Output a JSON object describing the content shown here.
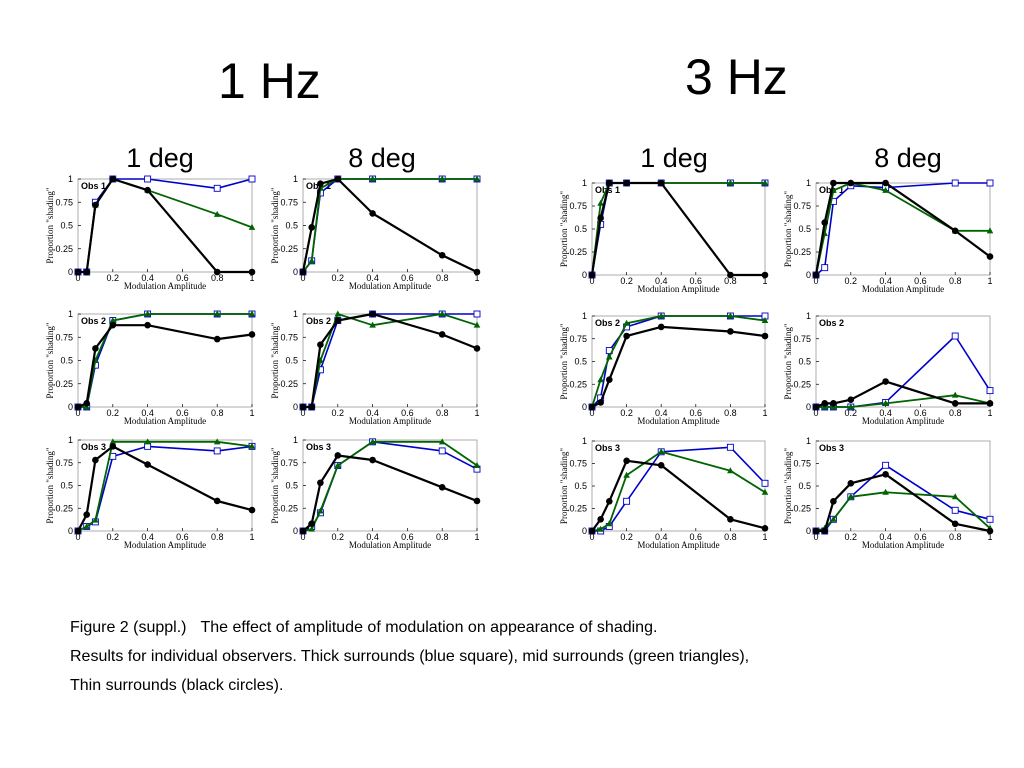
{
  "titles": {
    "freq_1hz": "1 Hz",
    "freq_3hz": "3 Hz",
    "col_1": "1 deg",
    "col_2": "8 deg",
    "col_3": "1 deg",
    "col_4": "8 deg"
  },
  "caption": {
    "label": "Figure 2 (suppl.)",
    "line1": "The effect of amplitude of modulation on appearance of shading.",
    "line2": "Results for individual observers. Thick surrounds (blue square), mid surrounds (green triangles),",
    "line3": "Thin surrounds (black circles)."
  },
  "colors": {
    "blue": "#0000cc",
    "green": "#006400",
    "black": "#000000",
    "frame": "#999999"
  },
  "chart_data": [
    {
      "id": "1hz-1deg-obs1",
      "type": "line",
      "title": "Obs 1",
      "xlabel": "Modulation Amplitude",
      "ylabel": "Proportion \"shading\"",
      "xlim": [
        0,
        1
      ],
      "ylim": [
        0,
        1
      ],
      "x": [
        0,
        0.05,
        0.1,
        0.2,
        0.4,
        0.8,
        1
      ],
      "series": [
        {
          "marker": "square",
          "color": "#0000cc",
          "values": [
            0,
            0,
            0.75,
            1,
            1,
            0.9,
            1
          ]
        },
        {
          "marker": "triangle",
          "color": "#006400",
          "values": [
            0,
            0,
            0.72,
            1,
            0.88,
            0.62,
            0.48
          ]
        },
        {
          "marker": "circle",
          "color": "#000000",
          "values": [
            0,
            0,
            0.72,
            1,
            0.88,
            0,
            0
          ]
        }
      ]
    },
    {
      "id": "1hz-8deg-obs1",
      "type": "line",
      "title": "Obs 1",
      "xlabel": "Modulation Amplitude",
      "ylabel": "Proportion \"shading\"",
      "xlim": [
        0,
        1
      ],
      "ylim": [
        0,
        1
      ],
      "x": [
        0,
        0.05,
        0.1,
        0.2,
        0.4,
        0.8,
        1
      ],
      "series": [
        {
          "marker": "square",
          "color": "#0000cc",
          "values": [
            0,
            0.12,
            0.85,
            1,
            1,
            1,
            1
          ]
        },
        {
          "marker": "triangle",
          "color": "#006400",
          "values": [
            0,
            0.12,
            0.9,
            1,
            1,
            1,
            1
          ]
        },
        {
          "marker": "circle",
          "color": "#000000",
          "values": [
            0,
            0.48,
            0.95,
            1,
            0.63,
            0.18,
            0
          ]
        }
      ]
    },
    {
      "id": "3hz-1deg-obs1",
      "type": "line",
      "title": "Obs 1",
      "xlabel": "Modulation Amplitude",
      "ylabel": "Proportion \"shading\"",
      "xlim": [
        0,
        1
      ],
      "ylim": [
        0,
        1
      ],
      "x": [
        0,
        0.05,
        0.1,
        0.2,
        0.4,
        0.8,
        1
      ],
      "series": [
        {
          "marker": "square",
          "color": "#0000cc",
          "values": [
            0,
            0.55,
            1,
            1,
            1,
            1,
            1
          ]
        },
        {
          "marker": "triangle",
          "color": "#006400",
          "values": [
            0,
            0.78,
            1,
            1,
            1,
            1,
            1
          ]
        },
        {
          "marker": "circle",
          "color": "#000000",
          "values": [
            0,
            0.62,
            1,
            1,
            1,
            0,
            0
          ]
        }
      ]
    },
    {
      "id": "3hz-8deg-obs1",
      "type": "line",
      "title": "Obs 1",
      "xlabel": "Modulation Amplitude",
      "ylabel": "Proportion \"shading\"",
      "xlim": [
        0,
        1
      ],
      "ylim": [
        0,
        1
      ],
      "x": [
        0,
        0.05,
        0.1,
        0.2,
        0.4,
        0.8,
        1
      ],
      "series": [
        {
          "marker": "square",
          "color": "#0000cc",
          "values": [
            0,
            0.08,
            0.8,
            0.97,
            0.95,
            1,
            1
          ]
        },
        {
          "marker": "triangle",
          "color": "#006400",
          "values": [
            0,
            0.45,
            0.92,
            1,
            0.92,
            0.48,
            0.48
          ]
        },
        {
          "marker": "circle",
          "color": "#000000",
          "values": [
            0,
            0.57,
            1,
            1,
            1,
            0.48,
            0.2
          ]
        }
      ]
    },
    {
      "id": "1hz-1deg-obs2",
      "type": "line",
      "title": "Obs 2",
      "xlabel": "Modulation Amplitude",
      "ylabel": "Proportion \"shading\"",
      "xlim": [
        0,
        1
      ],
      "ylim": [
        0,
        1
      ],
      "x": [
        0,
        0.05,
        0.1,
        0.2,
        0.4,
        0.8,
        1
      ],
      "series": [
        {
          "marker": "square",
          "color": "#0000cc",
          "values": [
            0,
            0,
            0.45,
            0.93,
            1,
            1,
            1
          ]
        },
        {
          "marker": "triangle",
          "color": "#006400",
          "values": [
            0,
            0,
            0.5,
            0.93,
            1,
            1,
            1
          ]
        },
        {
          "marker": "circle",
          "color": "#000000",
          "values": [
            0,
            0.04,
            0.63,
            0.88,
            0.88,
            0.73,
            0.78
          ]
        }
      ]
    },
    {
      "id": "1hz-8deg-obs2",
      "type": "line",
      "title": "Obs 2",
      "xlabel": "Modulation Amplitude",
      "ylabel": "Proportion \"shading\"",
      "xlim": [
        0,
        1
      ],
      "ylim": [
        0,
        1
      ],
      "x": [
        0,
        0.05,
        0.1,
        0.2,
        0.4,
        0.8,
        1
      ],
      "series": [
        {
          "marker": "square",
          "color": "#0000cc",
          "values": [
            0,
            0,
            0.4,
            0.93,
            1,
            1,
            1
          ]
        },
        {
          "marker": "triangle",
          "color": "#006400",
          "values": [
            0,
            0,
            0.5,
            1,
            0.88,
            1,
            0.88
          ]
        },
        {
          "marker": "circle",
          "color": "#000000",
          "values": [
            0,
            0,
            0.67,
            0.93,
            1,
            0.78,
            0.63
          ]
        }
      ]
    },
    {
      "id": "3hz-1deg-obs2",
      "type": "line",
      "title": "Obs 2",
      "xlabel": "Modulation Amplitude",
      "ylabel": "Proportion \"shading\"",
      "xlim": [
        0,
        1
      ],
      "ylim": [
        0,
        1
      ],
      "x": [
        0,
        0.05,
        0.1,
        0.2,
        0.4,
        0.8,
        1
      ],
      "series": [
        {
          "marker": "square",
          "color": "#0000cc",
          "values": [
            0,
            0.1,
            0.62,
            0.88,
            1,
            1,
            1
          ]
        },
        {
          "marker": "triangle",
          "color": "#006400",
          "values": [
            0,
            0.3,
            0.55,
            0.92,
            1,
            1,
            0.95
          ]
        },
        {
          "marker": "circle",
          "color": "#000000",
          "values": [
            0,
            0.05,
            0.3,
            0.78,
            0.88,
            0.83,
            0.78
          ]
        }
      ]
    },
    {
      "id": "3hz-8deg-obs2",
      "type": "line",
      "title": "Obs 2",
      "xlabel": "Modulation Amplitude",
      "ylabel": "Proportion \"shading\"",
      "xlim": [
        0,
        1
      ],
      "ylim": [
        0,
        1
      ],
      "x": [
        0,
        0.05,
        0.1,
        0.2,
        0.4,
        0.8,
        1
      ],
      "series": [
        {
          "marker": "square",
          "color": "#0000cc",
          "values": [
            0,
            0,
            0,
            0,
            0.05,
            0.78,
            0.18
          ]
        },
        {
          "marker": "triangle",
          "color": "#006400",
          "values": [
            0,
            0,
            0,
            0,
            0.04,
            0.13,
            0.04
          ]
        },
        {
          "marker": "circle",
          "color": "#000000",
          "values": [
            0,
            0.04,
            0.04,
            0.08,
            0.28,
            0.04,
            0.04
          ]
        }
      ]
    },
    {
      "id": "1hz-1deg-obs3",
      "type": "line",
      "title": "Obs 3",
      "xlabel": "Modulation Amplitude",
      "ylabel": "Proportion \"shading\"",
      "xlim": [
        0,
        1
      ],
      "ylim": [
        0,
        1
      ],
      "x": [
        0,
        0.05,
        0.1,
        0.2,
        0.4,
        0.8,
        1
      ],
      "series": [
        {
          "marker": "square",
          "color": "#0000cc",
          "values": [
            0,
            0.05,
            0.1,
            0.82,
            0.93,
            0.88,
            0.93
          ]
        },
        {
          "marker": "triangle",
          "color": "#006400",
          "values": [
            0,
            0.05,
            0.12,
            0.98,
            0.98,
            0.98,
            0.93
          ]
        },
        {
          "marker": "circle",
          "color": "#000000",
          "values": [
            0,
            0.18,
            0.78,
            0.93,
            0.73,
            0.33,
            0.23
          ]
        }
      ]
    },
    {
      "id": "1hz-8deg-obs3",
      "type": "line",
      "title": "Obs 3",
      "xlabel": "Modulation Amplitude",
      "ylabel": "Proportion \"shading\"",
      "xlim": [
        0,
        1
      ],
      "ylim": [
        0,
        1
      ],
      "x": [
        0,
        0.05,
        0.1,
        0.2,
        0.4,
        0.8,
        1
      ],
      "series": [
        {
          "marker": "square",
          "color": "#0000cc",
          "values": [
            0,
            0.05,
            0.2,
            0.72,
            0.98,
            0.88,
            0.68
          ]
        },
        {
          "marker": "triangle",
          "color": "#006400",
          "values": [
            0,
            0.02,
            0.22,
            0.72,
            0.98,
            0.98,
            0.72
          ]
        },
        {
          "marker": "circle",
          "color": "#000000",
          "values": [
            0,
            0.08,
            0.53,
            0.83,
            0.78,
            0.48,
            0.33
          ]
        }
      ]
    },
    {
      "id": "3hz-1deg-obs3",
      "type": "line",
      "title": "Obs 3",
      "xlabel": "Modulation Amplitude",
      "ylabel": "Proportion \"shading\"",
      "xlim": [
        0,
        1
      ],
      "ylim": [
        0,
        1
      ],
      "x": [
        0,
        0.05,
        0.1,
        0.2,
        0.4,
        0.8,
        1
      ],
      "series": [
        {
          "marker": "square",
          "color": "#0000cc",
          "values": [
            0,
            0,
            0.05,
            0.33,
            0.88,
            0.93,
            0.53
          ]
        },
        {
          "marker": "triangle",
          "color": "#006400",
          "values": [
            0,
            0.02,
            0.08,
            0.62,
            0.88,
            0.67,
            0.43
          ]
        },
        {
          "marker": "circle",
          "color": "#000000",
          "values": [
            0,
            0.13,
            0.33,
            0.78,
            0.73,
            0.13,
            0.03
          ]
        }
      ]
    },
    {
      "id": "3hz-8deg-obs3",
      "type": "line",
      "title": "Obs 3",
      "xlabel": "Modulation Amplitude",
      "ylabel": "Proportion \"shading\"",
      "xlim": [
        0,
        1
      ],
      "ylim": [
        0,
        1
      ],
      "x": [
        0,
        0.05,
        0.1,
        0.2,
        0.4,
        0.8,
        1
      ],
      "series": [
        {
          "marker": "square",
          "color": "#0000cc",
          "values": [
            0,
            0,
            0.13,
            0.38,
            0.73,
            0.23,
            0.13
          ]
        },
        {
          "marker": "triangle",
          "color": "#006400",
          "values": [
            0,
            0.03,
            0.13,
            0.38,
            0.43,
            0.38,
            0.03
          ]
        },
        {
          "marker": "circle",
          "color": "#000000",
          "values": [
            0,
            0,
            0.33,
            0.53,
            0.63,
            0.08,
            0
          ]
        }
      ]
    }
  ]
}
